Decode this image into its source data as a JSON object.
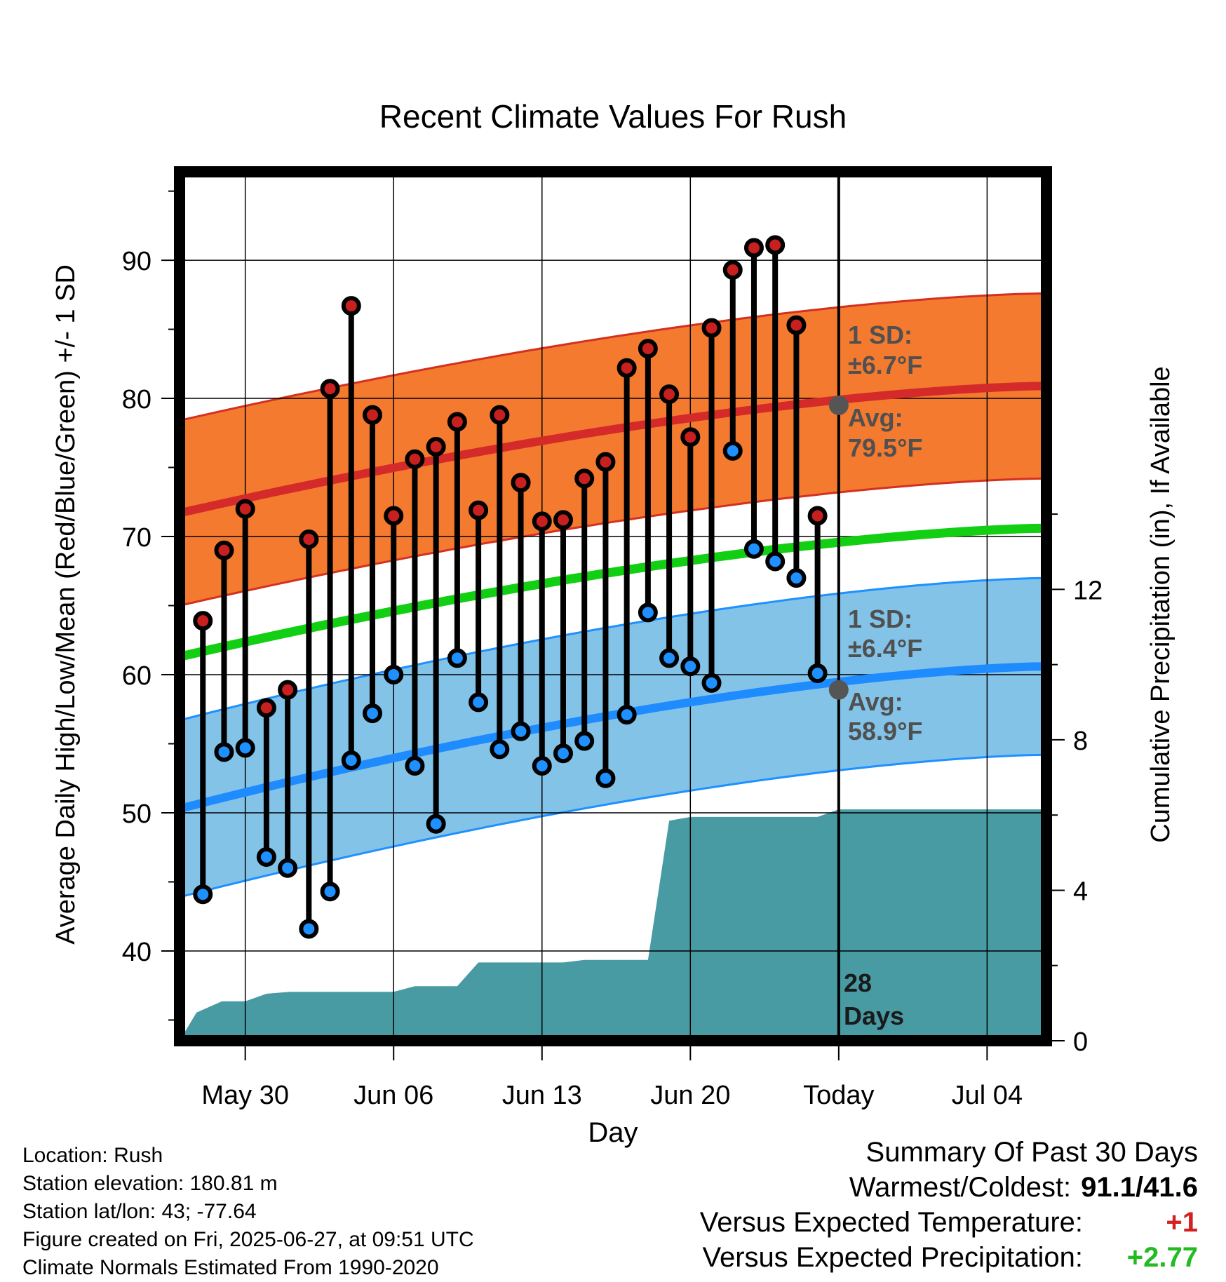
{
  "chart_data": {
    "type": "line",
    "title": "Recent Climate Values For Rush",
    "xlabel": "Day",
    "ylabel": "Average Daily High/Low/Mean (Red/Blue/Green) +/- 1 SD",
    "y2label": "Cumulative Precipitation (in), If Available",
    "x_tick_labels": [
      "May 30",
      "Jun 06",
      "Jun 13",
      "Jun 20",
      "Today",
      "Jul 04"
    ],
    "x_tick_days": [
      0,
      7,
      14,
      21,
      28,
      35
    ],
    "xlim_days": [
      -3.1,
      37.8
    ],
    "y_ticks": [
      40,
      50,
      60,
      70,
      80,
      90
    ],
    "ylim": [
      33.5,
      96.4
    ],
    "y2_ticks": [
      0,
      4,
      8,
      12
    ],
    "y2lim": [
      0,
      23.1
    ],
    "grid": true,
    "today_day": 28,
    "days_label": "28",
    "days_label2": "Days",
    "normal_high": {
      "start": 71.7,
      "end": 80.9,
      "sd": 6.7
    },
    "normal_low": {
      "start": 50.3,
      "end": 60.6,
      "sd": 6.4
    },
    "normal_mean": {
      "start": 61.3,
      "end": 70.6
    },
    "annotations": {
      "high_sd_label": "1 SD:",
      "high_sd_value": "±6.7°F",
      "high_avg_label": "Avg:",
      "high_avg_value": "79.5°F",
      "low_sd_label": "1 SD:",
      "low_sd_value": "±6.4°F",
      "low_avg_label": "Avg:",
      "low_avg_value": "58.9°F"
    },
    "series": [
      {
        "name": "Daily High",
        "color": "#c8201e",
        "values": [
          63.9,
          69.0,
          72.0,
          57.6,
          58.9,
          69.8,
          80.7,
          86.7,
          78.8,
          71.5,
          75.6,
          76.5,
          78.3,
          71.9,
          78.8,
          73.9,
          71.1,
          71.2,
          74.2,
          75.4,
          82.2,
          83.6,
          80.3,
          77.2,
          85.1,
          89.3,
          90.9,
          91.1,
          85.3,
          71.5
        ]
      },
      {
        "name": "Daily Low",
        "color": "#1e90ff",
        "values": [
          44.1,
          54.4,
          54.7,
          46.8,
          46.0,
          41.6,
          44.3,
          53.8,
          57.2,
          60.0,
          53.4,
          49.2,
          61.2,
          58.0,
          54.6,
          55.9,
          53.4,
          54.3,
          55.2,
          52.5,
          57.1,
          64.5,
          61.2,
          60.6,
          59.4,
          76.2,
          69.1,
          68.2,
          67.0,
          60.1
        ]
      },
      {
        "name": "Cumulative Precipitation",
        "days": [
          -3.1,
          -2.3,
          -1.1,
          0.0,
          1.0,
          2.1,
          3.0,
          4.0,
          5.0,
          6.0,
          7.0,
          8.0,
          9.0,
          10.0,
          11.0,
          12.0,
          13.0,
          14.0,
          15.0,
          16.0,
          16.9,
          17.8,
          19.0,
          20.0,
          21.0,
          22.0,
          23.0,
          24.0,
          25.0,
          26.0,
          27.0,
          28.0,
          37.8
        ],
        "values": [
          0.0,
          0.75,
          1.05,
          1.05,
          1.25,
          1.3,
          1.3,
          1.3,
          1.3,
          1.3,
          1.3,
          1.45,
          1.45,
          1.45,
          2.08,
          2.08,
          2.08,
          2.08,
          2.08,
          2.15,
          2.15,
          2.15,
          2.15,
          5.85,
          5.95,
          5.95,
          5.95,
          5.95,
          5.95,
          5.95,
          5.95,
          6.15,
          6.15
        ]
      }
    ]
  },
  "info": {
    "location": "Location: Rush",
    "elevation": "Station elevation: 180.81 m",
    "latlon": "Station lat/lon: 43; -77.64",
    "created": "Figure created on Fri, 2025-06-27, at 09:51 UTC",
    "normals": "Climate Normals Estimated From 1990-2020"
  },
  "summary": {
    "title": "Summary Of Past 30 Days",
    "warm_cold_label": "Warmest/Coldest:",
    "warm_cold_value": "91.1/41.6",
    "temp_label": "Versus Expected Temperature:",
    "temp_value": "+1",
    "temp_color": "#d42020",
    "precip_label": "Versus Expected Precipitation:",
    "precip_value": "+2.77",
    "precip_color": "#22bb22"
  }
}
